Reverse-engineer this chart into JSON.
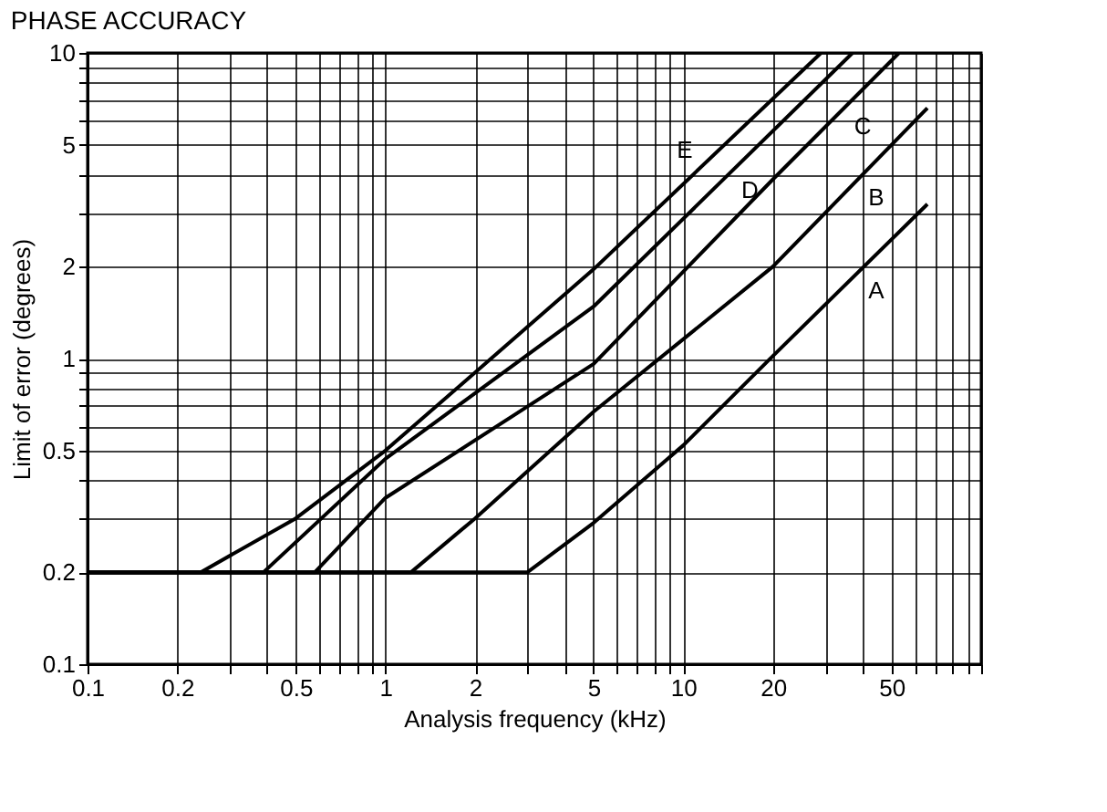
{
  "chart_data": {
    "type": "line",
    "title": "PHASE ACCURACY",
    "xlabel": "Analysis frequency (kHz)",
    "ylabel": "Limit of error (degrees)",
    "log": "xy",
    "grid": true,
    "marker": "none",
    "line_style": "solid",
    "xlim": [
      0.1,
      100
    ],
    "ylim": [
      0.1,
      10
    ],
    "xticks": [
      0.1,
      0.2,
      {
        "value": 0.3,
        "label": null
      },
      {
        "value": 0.4,
        "label": null
      },
      0.5,
      {
        "value": 0.6,
        "label": null
      },
      {
        "value": 0.7,
        "label": null
      },
      {
        "value": 0.8,
        "label": null
      },
      {
        "value": 0.9,
        "label": null
      },
      1,
      2,
      {
        "value": 3,
        "label": null
      },
      {
        "value": 4,
        "label": null
      },
      5,
      {
        "value": 6,
        "label": null
      },
      {
        "value": 7,
        "label": null
      },
      {
        "value": 8,
        "label": null
      },
      {
        "value": 9,
        "label": null
      },
      10,
      20,
      {
        "value": 30,
        "label": null
      },
      {
        "value": 40,
        "label": null
      },
      50,
      {
        "value": 60,
        "label": null
      },
      {
        "value": 70,
        "label": null
      },
      {
        "value": 80,
        "label": null
      },
      {
        "value": 90,
        "label": null
      },
      {
        "value": 100,
        "label": null
      }
    ],
    "yticks": [
      0.1,
      0.2,
      {
        "value": 0.3,
        "label": null
      },
      {
        "value": 0.4,
        "label": null
      },
      0.5,
      {
        "value": 0.6,
        "label": null
      },
      {
        "value": 0.7,
        "label": null
      },
      {
        "value": 0.8,
        "label": null
      },
      {
        "value": 0.9,
        "label": null
      },
      1,
      2,
      {
        "value": 3,
        "label": null
      },
      {
        "value": 4,
        "label": null
      },
      5,
      {
        "value": 6,
        "label": null
      },
      {
        "value": 7,
        "label": null
      },
      {
        "value": 8,
        "label": null
      },
      {
        "value": 9,
        "label": null
      },
      10
    ],
    "series": [
      {
        "name": "A",
        "color": "#000000",
        "x": [
          0.1,
          3,
          5,
          10,
          20,
          66
        ],
        "values": [
          0.2,
          0.2,
          0.29,
          0.52,
          1.02,
          3.2
        ]
      },
      {
        "name": "B",
        "color": "#000000",
        "x": [
          0.1,
          1.22,
          2,
          5,
          20,
          66
        ],
        "values": [
          0.2,
          0.2,
          0.3,
          0.67,
          2.0,
          6.6
        ]
      },
      {
        "name": "C",
        "color": "#000000",
        "x": [
          0.1,
          0.58,
          1,
          5,
          20,
          53
        ],
        "values": [
          0.2,
          0.2,
          0.35,
          0.96,
          3.86,
          10
        ]
      },
      {
        "name": "D",
        "color": "#000000",
        "x": [
          0.1,
          0.39,
          1,
          5,
          37
        ],
        "values": [
          0.2,
          0.2,
          0.47,
          1.48,
          10
        ]
      },
      {
        "name": "E",
        "color": "#000000",
        "x": [
          0.1,
          0.24,
          0.5,
          1,
          5,
          29
        ],
        "values": [
          0.2,
          0.2,
          0.3,
          0.5,
          1.96,
          10
        ]
      }
    ]
  }
}
